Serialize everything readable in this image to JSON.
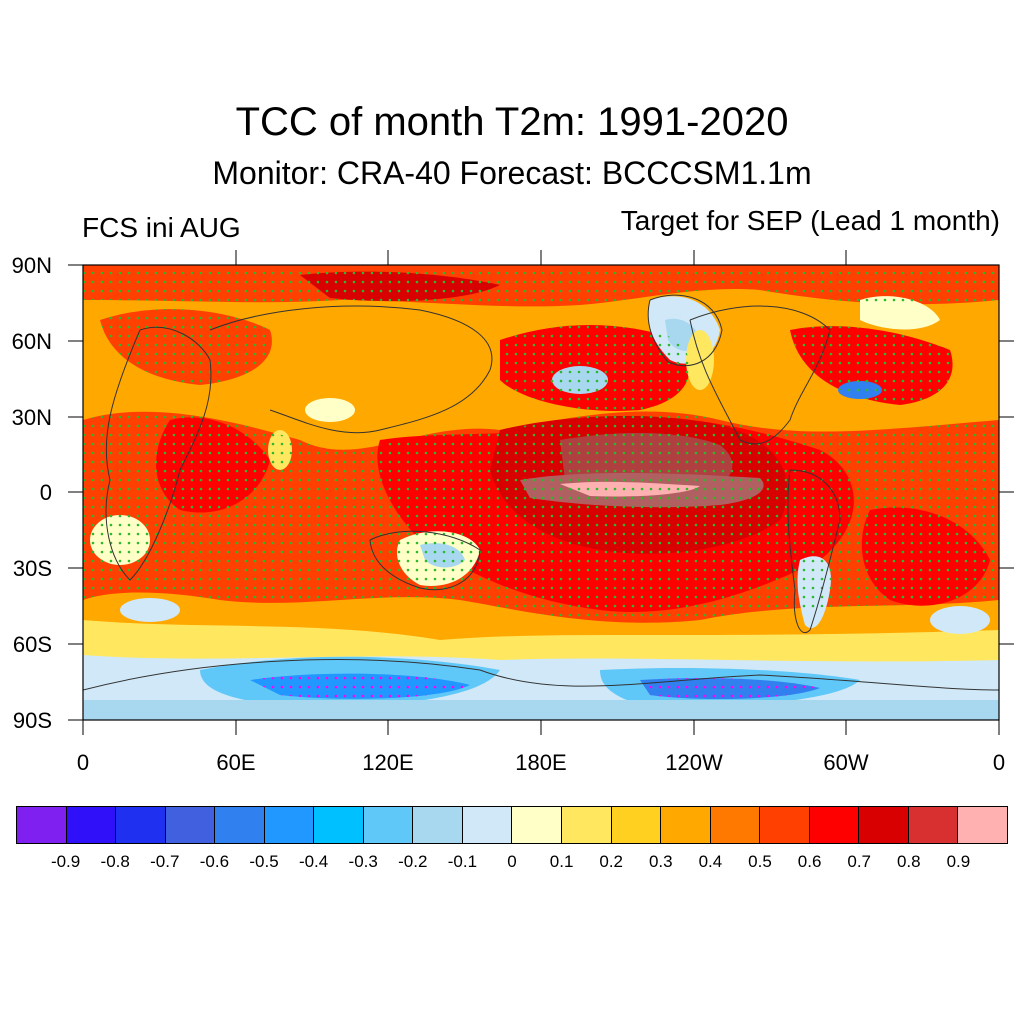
{
  "title": "TCC of month T2m: 1991-2020",
  "subtitle": "Monitor: CRA-40   Forecast: BCCCSM1.1m",
  "left_label": "FCS ini AUG",
  "right_label": "Target for SEP (Lead 1 month)",
  "map": {
    "lat_ticks": [
      "90N",
      "60N",
      "30N",
      "0",
      "30S",
      "60S",
      "90S"
    ],
    "lon_ticks": [
      "0",
      "60E",
      "120E",
      "180E",
      "120W",
      "60W",
      "0"
    ],
    "stipple_colors": {
      "positive": "#2eb82e",
      "negative": "#ff00ff"
    }
  },
  "colorbar": {
    "labels": [
      "-0.9",
      "-0.8",
      "-0.7",
      "-0.6",
      "-0.5",
      "-0.4",
      "-0.3",
      "-0.2",
      "-0.1",
      "0",
      "0.1",
      "0.2",
      "0.3",
      "0.4",
      "0.5",
      "0.6",
      "0.7",
      "0.8",
      "0.9"
    ],
    "colors": [
      "#8020f0",
      "#3010f8",
      "#2030f0",
      "#4060e0",
      "#3080f0",
      "#2098ff",
      "#00c0ff",
      "#60c8f8",
      "#a8d8f0",
      "#d0e8f8",
      "#ffffc8",
      "#ffe860",
      "#ffd020",
      "#ffa800",
      "#ff7800",
      "#ff4000",
      "#ff0000",
      "#d80000",
      "#d83030",
      "#ffb0b0"
    ]
  }
}
